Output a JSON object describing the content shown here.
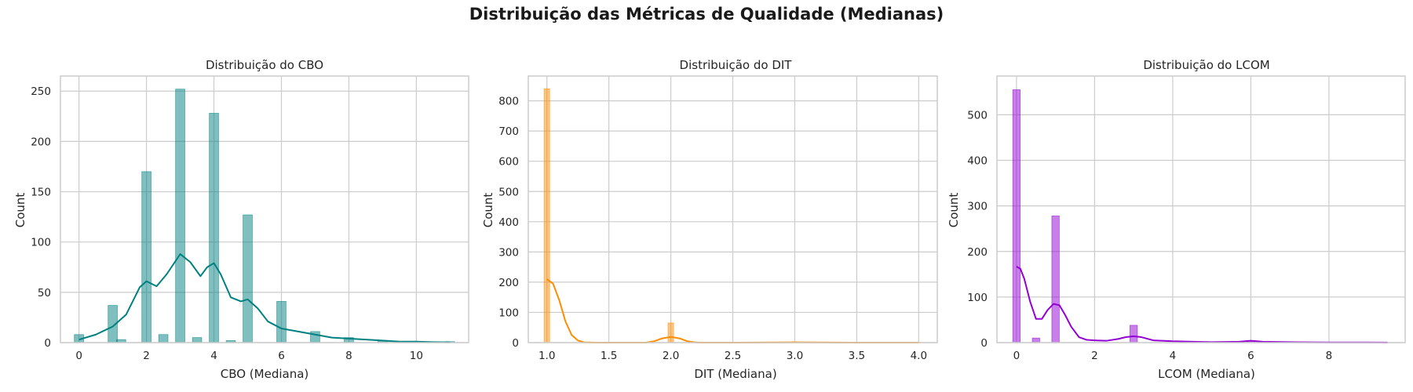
{
  "figure_title": "Distribuição das Métricas de Qualidade (Medianas)",
  "chart_data": [
    {
      "type": "bar",
      "title": "Distribuição do CBO",
      "xlabel": "CBO (Mediana)",
      "ylabel": "Count",
      "xlim": [
        -0.55,
        11.55
      ],
      "ylim": [
        0,
        265
      ],
      "xticks": [
        0,
        2,
        4,
        6,
        8,
        10
      ],
      "xtick_labels": [
        "0",
        "2",
        "4",
        "6",
        "8",
        "10"
      ],
      "yticks": [
        0,
        50,
        100,
        150,
        200,
        250
      ],
      "ytick_labels": [
        "0",
        "50",
        "100",
        "150",
        "200",
        "250"
      ],
      "grid": true,
      "color": "#008080",
      "bin_width": 0.275,
      "bins": [
        {
          "x": 0,
          "count": 8
        },
        {
          "x": 1,
          "count": 37
        },
        {
          "x": 1.25,
          "count": 3
        },
        {
          "x": 2,
          "count": 170
        },
        {
          "x": 2.5,
          "count": 8
        },
        {
          "x": 3,
          "count": 252
        },
        {
          "x": 3.5,
          "count": 5
        },
        {
          "x": 4,
          "count": 228
        },
        {
          "x": 4.5,
          "count": 2
        },
        {
          "x": 5,
          "count": 127
        },
        {
          "x": 6,
          "count": 41
        },
        {
          "x": 7,
          "count": 11
        },
        {
          "x": 8,
          "count": 5
        },
        {
          "x": 9,
          "count": 2
        },
        {
          "x": 10,
          "count": 1
        },
        {
          "x": 11,
          "count": 1
        }
      ],
      "kde": {
        "x": [
          0,
          0.5,
          1,
          1.4,
          1.8,
          2,
          2.3,
          2.6,
          3,
          3.3,
          3.6,
          3.8,
          4,
          4.2,
          4.5,
          4.8,
          5,
          5.3,
          5.6,
          6,
          6.5,
          7,
          7.5,
          8,
          8.5,
          9,
          9.5,
          10,
          10.5,
          11
        ],
        "y": [
          3,
          8,
          16,
          28,
          55,
          61,
          56,
          68,
          88,
          80,
          66,
          75,
          79,
          68,
          45,
          41,
          43,
          34,
          21,
          14,
          11,
          8,
          5,
          4,
          3,
          2,
          1,
          1,
          0.5,
          0.3
        ]
      }
    },
    {
      "type": "bar",
      "title": "Distribuição do DIT",
      "xlabel": "DIT (Mediana)",
      "ylabel": "Count",
      "xlim": [
        0.85,
        4.15
      ],
      "ylim": [
        0,
        882
      ],
      "xticks": [
        1.0,
        1.5,
        2.0,
        2.5,
        3.0,
        3.5,
        4.0
      ],
      "xtick_labels": [
        "1.0",
        "1.5",
        "2.0",
        "2.5",
        "3.0",
        "3.5",
        "4.0"
      ],
      "yticks": [
        0,
        100,
        200,
        300,
        400,
        500,
        600,
        700,
        800
      ],
      "ytick_labels": [
        "0",
        "100",
        "200",
        "300",
        "400",
        "500",
        "600",
        "700",
        "800"
      ],
      "grid": true,
      "color": "#ff8c00",
      "bin_width": 0.045,
      "bins": [
        {
          "x": 1.0,
          "count": 840
        },
        {
          "x": 2.0,
          "count": 65
        },
        {
          "x": 3.0,
          "count": 3
        },
        {
          "x": 4.0,
          "count": 1
        }
      ],
      "kde": {
        "x": [
          1.0,
          1.05,
          1.1,
          1.15,
          1.2,
          1.25,
          1.3,
          1.4,
          1.5,
          1.6,
          1.7,
          1.8,
          1.87,
          1.93,
          2.0,
          2.07,
          2.13,
          2.2,
          2.3,
          2.5,
          3.0,
          3.5,
          4.0
        ],
        "y": [
          210,
          195,
          140,
          70,
          25,
          7,
          1,
          0,
          0,
          0,
          0,
          0,
          5,
          14,
          19,
          14,
          5,
          0.5,
          0,
          0,
          1,
          0,
          0
        ]
      }
    },
    {
      "type": "bar",
      "title": "Distribuição do LCOM",
      "xlabel": "LCOM (Mediana)",
      "ylabel": "Count",
      "xlim": [
        -0.5,
        9.95
      ],
      "ylim": [
        0,
        585
      ],
      "xticks": [
        0,
        2,
        4,
        6,
        8
      ],
      "xtick_labels": [
        "0",
        "2",
        "4",
        "6",
        "8"
      ],
      "yticks": [
        0,
        100,
        200,
        300,
        400,
        500
      ],
      "ytick_labels": [
        "0",
        "100",
        "200",
        "300",
        "400",
        "500"
      ],
      "grid": true,
      "color": "#9400d3",
      "bin_width": 0.19,
      "bins": [
        {
          "x": 0,
          "count": 555
        },
        {
          "x": 0.5,
          "count": 10
        },
        {
          "x": 1,
          "count": 278
        },
        {
          "x": 3,
          "count": 38
        },
        {
          "x": 6,
          "count": 4
        },
        {
          "x": 9,
          "count": 1
        }
      ],
      "kde": {
        "x": [
          0,
          0.1,
          0.2,
          0.35,
          0.5,
          0.65,
          0.8,
          0.95,
          1.1,
          1.25,
          1.4,
          1.6,
          1.8,
          2.0,
          2.3,
          2.6,
          2.8,
          3.0,
          3.2,
          3.5,
          4.0,
          5.0,
          5.7,
          6.0,
          6.3,
          7.0,
          8.0,
          9.0,
          9.5
        ],
        "y": [
          167,
          162,
          140,
          90,
          52,
          52,
          72,
          85,
          82,
          60,
          35,
          12,
          6,
          5,
          4,
          8,
          12,
          14,
          12,
          5,
          3,
          1,
          2,
          4,
          2,
          1,
          0.5,
          0.5,
          0.2
        ]
      }
    }
  ]
}
